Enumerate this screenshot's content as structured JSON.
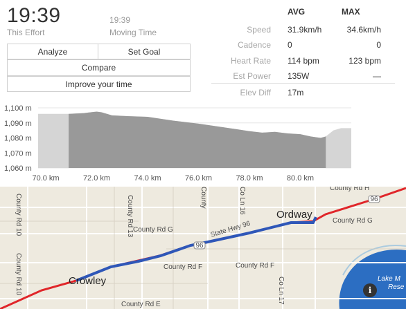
{
  "effort": {
    "time": "19:39",
    "time_label": "This Effort",
    "moving_time": "19:39",
    "moving_time_label": "Moving Time"
  },
  "buttons": {
    "analyze": "Analyze",
    "set_goal": "Set Goal",
    "compare": "Compare",
    "improve": "Improve your time"
  },
  "stats": {
    "avg_header": "AVG",
    "max_header": "MAX",
    "rows": [
      {
        "label": "Speed",
        "avg": "31.9km/h",
        "max": "34.6km/h"
      },
      {
        "label": "Cadence",
        "avg": "0",
        "max": "0"
      },
      {
        "label": "Heart Rate",
        "avg": "114 bpm",
        "max": "123 bpm"
      },
      {
        "label": "Est Power",
        "avg": "135W",
        "max": "—"
      },
      {
        "label": "Elev Diff",
        "avg": "17m",
        "max": ""
      }
    ]
  },
  "chart_data": {
    "type": "area",
    "xlabel": "",
    "ylabel": "",
    "x_ticks": [
      "70.0 km",
      "72.0 km",
      "74.0 km",
      "76.0 km",
      "78.0 km",
      "80.0 km"
    ],
    "y_ticks": [
      "1,100 m",
      "1,090 m",
      "1,080 m",
      "1,070 m",
      "1,060 m"
    ],
    "xlim": [
      69.7,
      82.0
    ],
    "ylim": [
      1060,
      1100
    ],
    "segment_range_km": [
      70.9,
      81.0
    ],
    "x": [
      69.7,
      70.9,
      71.5,
      72.0,
      72.2,
      72.6,
      73.2,
      74.0,
      75.0,
      76.0,
      77.0,
      77.6,
      78.0,
      78.5,
      79.0,
      79.5,
      80.0,
      80.4,
      80.8,
      81.0,
      81.3,
      81.6,
      82.0
    ],
    "y": [
      1096,
      1096,
      1096.5,
      1097.5,
      1097,
      1095,
      1094.5,
      1094,
      1091.5,
      1089.5,
      1087,
      1085.5,
      1084.5,
      1083.5,
      1084,
      1083,
      1082.5,
      1081,
      1080,
      1081,
      1085,
      1086.5,
      1086.5
    ]
  },
  "map": {
    "towns": {
      "crowley": "Crowley",
      "ordway": "Ordway"
    },
    "roads": {
      "county_rd_g_1": "County Rd G",
      "county_rd_g_2": "County Rd G",
      "county_rd_f_1": "County Rd F",
      "county_rd_f_2": "County Rd F",
      "county_rd_e": "County Rd E",
      "county_rd_h": "County Rd H",
      "county_rd_10_1": "County Rd 10",
      "county_rd_10_2": "County Rd 10",
      "county_rd_13": "County Rd 13",
      "county_cut": "County",
      "county_ln_16": "Co Ln 16",
      "county_ln_17": "Co Ln 17",
      "state_hwy": "State Hwy 96",
      "hwy_shield": "96"
    },
    "lake": "Lake M",
    "lake_sub": "Rese",
    "colors": {
      "route": "#2f57b8",
      "path": "#e0262a",
      "water": "#2c6ec2",
      "land": "#eeeadf"
    }
  },
  "info_icon": "i"
}
